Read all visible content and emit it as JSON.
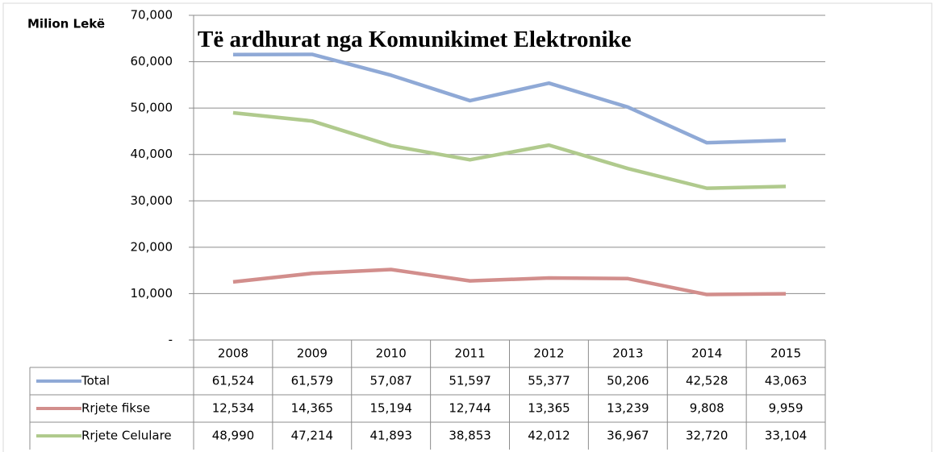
{
  "chart_data": {
    "type": "line",
    "title": "Të ardhurat nga Komunikimet Elektronike",
    "y_label": "Milion Lekë",
    "categories": [
      "2008",
      "2009",
      "2010",
      "2011",
      "2012",
      "2013",
      "2014",
      "2015"
    ],
    "series": [
      {
        "name": "Total",
        "color": "#8fa9d6",
        "values": [
          61524,
          61579,
          57087,
          51597,
          55377,
          50206,
          42528,
          43063
        ],
        "value_labels": [
          "61,524",
          "61,579",
          "57,087",
          "51,597",
          "55,377",
          "50,206",
          "42,528",
          "43,063"
        ]
      },
      {
        "name": "Rrjete fikse",
        "color": "#d28e8c",
        "values": [
          12534,
          14365,
          15194,
          12744,
          13365,
          13239,
          9808,
          9959
        ],
        "value_labels": [
          "12,534",
          "14,365",
          "15,194",
          "12,744",
          "13,365",
          "13,239",
          "9,808",
          "9,959"
        ]
      },
      {
        "name": "Rrjete Celulare",
        "color": "#b0ca8d",
        "values": [
          48990,
          47214,
          41893,
          38853,
          42012,
          36967,
          32720,
          33104
        ],
        "value_labels": [
          "48,990",
          "47,214",
          "41,893",
          "38,853",
          "42,012",
          "36,967",
          "32,720",
          "33,104"
        ]
      }
    ],
    "ylim": [
      0,
      70000
    ],
    "yticks": [
      {
        "value": 0,
        "label": "-"
      },
      {
        "value": 10000,
        "label": "10,000"
      },
      {
        "value": 20000,
        "label": "20,000"
      },
      {
        "value": 30000,
        "label": "30,000"
      },
      {
        "value": 40000,
        "label": "40,000"
      },
      {
        "value": 50000,
        "label": "50,000"
      },
      {
        "value": 60000,
        "label": "60,000"
      },
      {
        "value": 70000,
        "label": "70,000"
      }
    ],
    "grid": true
  }
}
